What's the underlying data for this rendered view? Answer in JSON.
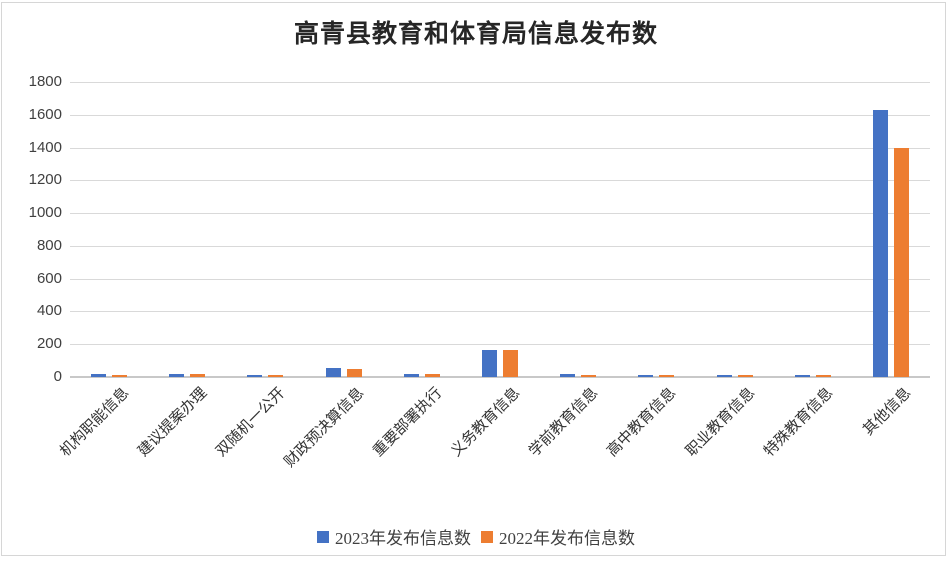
{
  "title": "高青县教育和体育局信息发布数",
  "colors": {
    "series_2023": "#4472C4",
    "series_2022": "#ED7D31",
    "gridline": "#D9D9D9",
    "axis_line": "#C8C8C8",
    "text": "#404040"
  },
  "chart_data": {
    "type": "bar",
    "title": "高青县教育和体育局信息发布数",
    "categories": [
      "机构职能信息",
      "建议提案办理",
      "双随机一公开",
      "财政预决算信息",
      "重要部署执行",
      "义务教育信息",
      "学前教育信息",
      "高中教育信息",
      "职业教育信息",
      "特殊教育信息",
      "其他信息"
    ],
    "series": [
      {
        "name": "2023年发布信息数",
        "color": "#4472C4",
        "values": [
          20,
          20,
          12,
          55,
          20,
          165,
          20,
          15,
          12,
          12,
          1630
        ]
      },
      {
        "name": "2022年发布信息数",
        "color": "#ED7D31",
        "values": [
          10,
          18,
          10,
          50,
          16,
          163,
          12,
          12,
          10,
          10,
          1400
        ]
      }
    ],
    "xlabel": "",
    "ylabel": "",
    "ylim": [
      0,
      1800
    ],
    "ytick_step": 200,
    "yticks": [
      0,
      200,
      400,
      600,
      800,
      1000,
      1200,
      1400,
      1600,
      1800
    ],
    "grid": "horizontal",
    "legend_position": "bottom"
  }
}
